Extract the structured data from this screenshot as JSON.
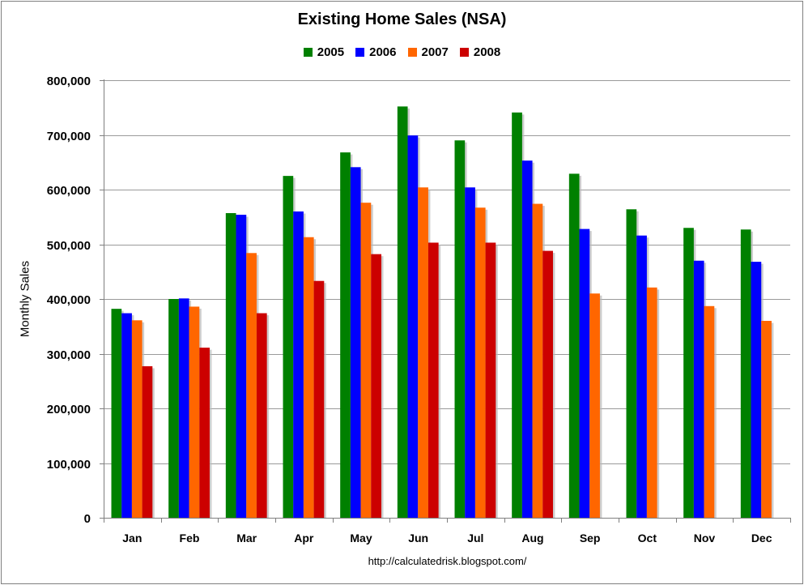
{
  "chart_data": {
    "type": "bar",
    "title": "Existing Home Sales (NSA)",
    "ylabel": "Monthly Sales",
    "xlabel": "",
    "categories": [
      "Jan",
      "Feb",
      "Mar",
      "Apr",
      "May",
      "Jun",
      "Jul",
      "Aug",
      "Sep",
      "Oct",
      "Nov",
      "Dec"
    ],
    "ylim": [
      0,
      800000
    ],
    "yticks": [
      0,
      100000,
      200000,
      300000,
      400000,
      500000,
      600000,
      700000,
      800000
    ],
    "ytick_labels": [
      "0",
      "100,000",
      "200,000",
      "300,000",
      "400,000",
      "500,000",
      "600,000",
      "700,000",
      "800,000"
    ],
    "grid": true,
    "legend_position": "top",
    "series": [
      {
        "name": "2005",
        "color": "#008000",
        "values": [
          382000,
          400000,
          557000,
          625000,
          668000,
          752000,
          690000,
          741000,
          629000,
          564000,
          530000,
          527000
        ]
      },
      {
        "name": "2006",
        "color": "#0000ff",
        "values": [
          374000,
          401000,
          554000,
          560000,
          641000,
          699000,
          604000,
          653000,
          528000,
          516000,
          470000,
          468000
        ]
      },
      {
        "name": "2007",
        "color": "#ff6600",
        "values": [
          361000,
          386000,
          484000,
          513000,
          576000,
          604000,
          567000,
          574000,
          410000,
          421000,
          387000,
          360000
        ]
      },
      {
        "name": "2008",
        "color": "#cc0000",
        "values": [
          277000,
          311000,
          374000,
          433000,
          482000,
          503000,
          503000,
          488000,
          null,
          null,
          null,
          null
        ]
      }
    ],
    "source": "http://calculatedrisk.blogspot.com/"
  }
}
